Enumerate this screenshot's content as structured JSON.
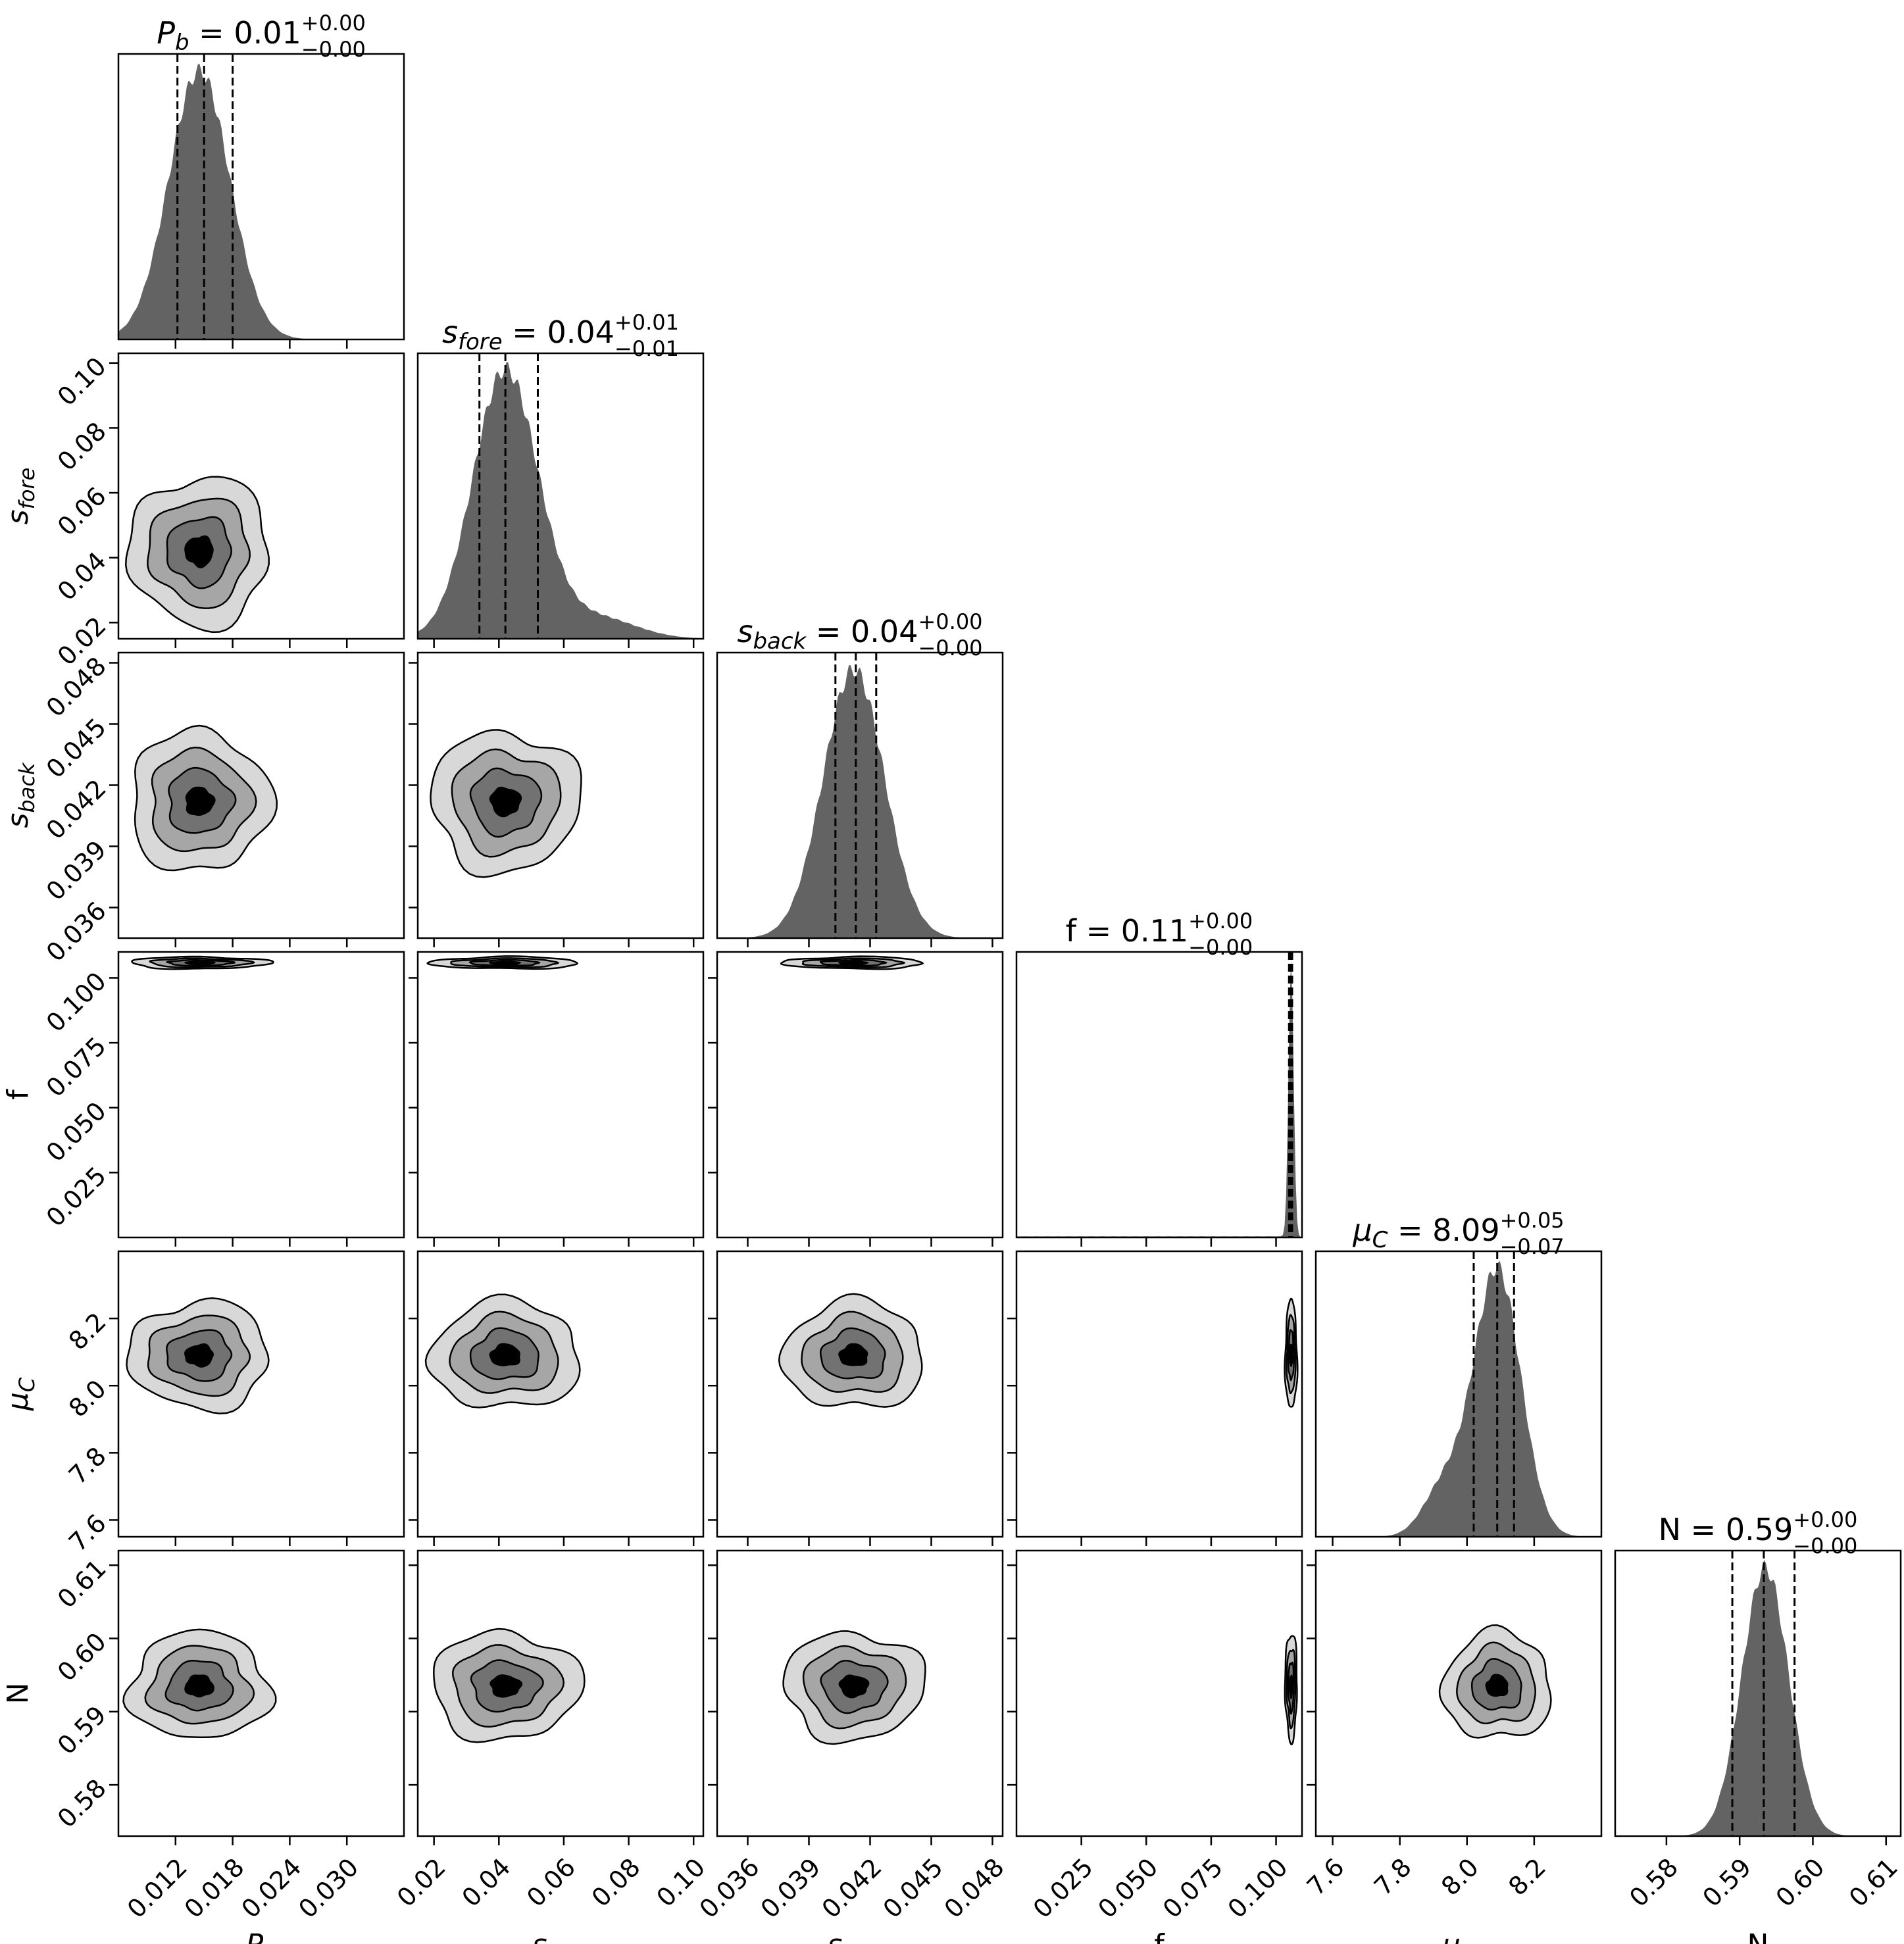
{
  "chart_data": {
    "type": "corner",
    "parameters": [
      {
        "key": "Pb",
        "label": "P",
        "label_sub": "b",
        "label_italic": true,
        "range": [
          0.006,
          0.036
        ],
        "ticks": [
          "0.012",
          "0.018",
          "0.024",
          "0.030"
        ],
        "tick_values": [
          0.012,
          0.018,
          0.024,
          0.03
        ]
      },
      {
        "key": "sfore",
        "label": "s",
        "label_sub": "fore",
        "label_italic": true,
        "range": [
          0.015,
          0.103
        ],
        "ticks": [
          "0.02",
          "0.04",
          "0.06",
          "0.08",
          "0.10"
        ],
        "tick_values": [
          0.02,
          0.04,
          0.06,
          0.08,
          0.1
        ]
      },
      {
        "key": "sback",
        "label": "s",
        "label_sub": "back",
        "label_italic": true,
        "range": [
          0.0345,
          0.0485
        ],
        "ticks": [
          "0.036",
          "0.039",
          "0.042",
          "0.045",
          "0.048"
        ],
        "tick_values": [
          0.036,
          0.039,
          0.042,
          0.045,
          0.048
        ]
      },
      {
        "key": "f",
        "label": "f",
        "label_sub": "",
        "label_italic": false,
        "range": [
          0.0,
          0.11
        ],
        "ticks": [
          "0.025",
          "0.050",
          "0.075",
          "0.100"
        ],
        "tick_values": [
          0.025,
          0.05,
          0.075,
          0.1
        ]
      },
      {
        "key": "muC",
        "label": "μ",
        "label_sub": "C",
        "label_italic": true,
        "range": [
          7.55,
          8.4
        ],
        "ticks": [
          "7.6",
          "7.8",
          "8.0",
          "8.2"
        ],
        "tick_values": [
          7.6,
          7.8,
          8.0,
          8.2
        ]
      },
      {
        "key": "N",
        "label": "N",
        "label_sub": "",
        "label_italic": false,
        "range": [
          0.573,
          0.612
        ],
        "ticks": [
          "0.58",
          "0.59",
          "0.60",
          "0.61"
        ],
        "tick_values": [
          0.58,
          0.59,
          0.6,
          0.61
        ]
      }
    ],
    "titles": [
      {
        "lhs": "P",
        "lhs_sub": "b",
        "rhs": " = 0.01",
        "sup": "+0.00",
        "sub": "−0.00",
        "italic": true
      },
      {
        "lhs": "s",
        "lhs_sub": "fore",
        "rhs": " = 0.04",
        "sup": "+0.01",
        "sub": "−0.01",
        "italic": true
      },
      {
        "lhs": "s",
        "lhs_sub": "back",
        "rhs": " = 0.04",
        "sup": "+0.00",
        "sub": "−0.00",
        "italic": true
      },
      {
        "lhs": "f",
        "lhs_sub": "",
        "rhs": " = 0.11",
        "sup": "+0.00",
        "sub": "−0.00",
        "italic": false
      },
      {
        "lhs": "μ",
        "lhs_sub": "C",
        "rhs": " = 8.09",
        "sup": "+0.05",
        "sub": "−0.07",
        "italic": true
      },
      {
        "lhs": "N",
        "lhs_sub": "",
        "rhs": " = 0.59",
        "sup": "+0.00",
        "sub": "−0.00",
        "italic": false
      }
    ],
    "posterior": {
      "mean": [
        0.0145,
        0.042,
        0.0412,
        0.1058,
        8.09,
        0.5935
      ],
      "sigma": [
        0.0032,
        0.01,
        0.0015,
        0.001,
        0.07,
        0.0032
      ],
      "quantiles": [
        [
          0.0122,
          0.015,
          0.018
        ],
        [
          0.034,
          0.042,
          0.052
        ],
        [
          0.0403,
          0.0413,
          0.0423
        ],
        [
          0.105,
          0.1055,
          0.1062
        ],
        [
          8.02,
          8.09,
          8.14
        ],
        [
          0.589,
          0.5933,
          0.5975
        ]
      ]
    },
    "density_colors": [
      "#d8d8d8",
      "#a6a6a6",
      "#727272",
      "#000000"
    ],
    "histogram_color": "#636363",
    "grid": false,
    "legend": "none"
  }
}
